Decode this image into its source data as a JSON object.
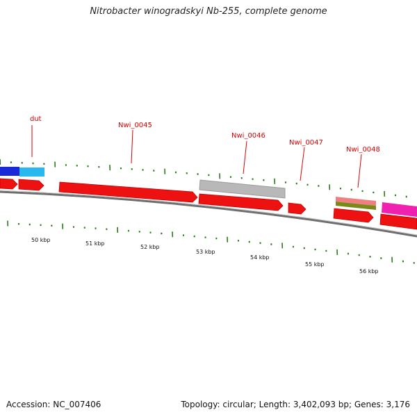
{
  "title": "Nitrobacter winogradskyi Nb-255, complete genome",
  "footer": {
    "accession": "Accession: NC_007406",
    "summary": "Topology: circular; Length: 3,402,093 bp; Genes: 3,176"
  },
  "colors": {
    "cds": "#ee1111",
    "backbone": "#777777",
    "tick": "#2a7a1a",
    "label": "#d40000",
    "blue": "#1a2ad8",
    "cyan": "#2ab8f0",
    "gray": "#b8b8b8",
    "salmon": "#f08080",
    "olive": "#7a8a1a",
    "magenta": "#f020b0"
  },
  "gene_labels": [
    {
      "id": "dut",
      "text": "dut"
    },
    {
      "id": "nwi-0045",
      "text": "Nwi_0045"
    },
    {
      "id": "nwi-0046",
      "text": "Nwi_0046"
    },
    {
      "id": "nwi-0047",
      "text": "Nwi_0047"
    },
    {
      "id": "nwi-0048",
      "text": "Nwi_0048"
    }
  ],
  "scale_labels": [
    "50 kbp",
    "51 kbp",
    "52 kbp",
    "53 kbp",
    "54 kbp",
    "55 kbp",
    "56 kbp"
  ]
}
